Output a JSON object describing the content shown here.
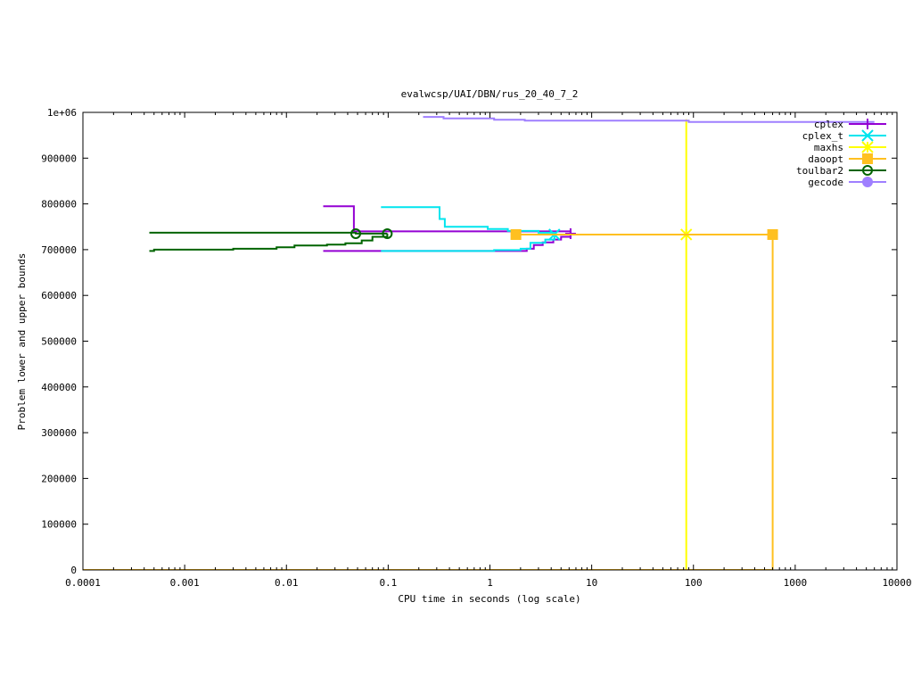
{
  "chart_data": {
    "type": "line",
    "title": "evalwcsp/UAI/DBN/rus_20_40_7_2",
    "xlabel": "CPU time in seconds (log scale)",
    "ylabel": "Problem lower and upper bounds",
    "x_scale": "log",
    "xlim": [
      0.0001,
      10000
    ],
    "ylim": [
      0,
      1000000
    ],
    "x_ticks": [
      {
        "value": 0.0001,
        "label": "0.0001"
      },
      {
        "value": 0.001,
        "label": "0.001"
      },
      {
        "value": 0.01,
        "label": "0.01"
      },
      {
        "value": 0.1,
        "label": "0.1"
      },
      {
        "value": 1,
        "label": "1"
      },
      {
        "value": 10,
        "label": "10"
      },
      {
        "value": 100,
        "label": "100"
      },
      {
        "value": 1000,
        "label": "1000"
      },
      {
        "value": 10000,
        "label": "10000"
      }
    ],
    "y_ticks": [
      {
        "value": 0,
        "label": "0"
      },
      {
        "value": 100000,
        "label": "100000"
      },
      {
        "value": 200000,
        "label": "200000"
      },
      {
        "value": 300000,
        "label": "300000"
      },
      {
        "value": 400000,
        "label": "400000"
      },
      {
        "value": 500000,
        "label": "500000"
      },
      {
        "value": 600000,
        "label": "600000"
      },
      {
        "value": 700000,
        "label": "700000"
      },
      {
        "value": 800000,
        "label": "800000"
      },
      {
        "value": 900000,
        "label": "900000"
      },
      {
        "value": 1000000,
        "label": "1e+06"
      }
    ],
    "grid": false,
    "legend_position": "top-right",
    "series": [
      {
        "name": "cplex",
        "color": "#9400d3",
        "marker": "plus",
        "paths": [
          [
            [
              0.023,
              795000
            ],
            [
              0.046,
              795000
            ],
            [
              0.046,
              740000
            ],
            [
              0.13,
              740000
            ],
            [
              2.5,
              740000
            ],
            [
              6.2,
              740000
            ],
            [
              6.2,
              728000
            ]
          ],
          [
            [
              0.023,
              697000
            ],
            [
              0.08,
              697000
            ],
            [
              1.2,
              697000
            ],
            [
              2.3,
              697000
            ],
            [
              2.3,
              702000
            ],
            [
              2.7,
              702000
            ],
            [
              2.7,
              710000
            ],
            [
              3.3,
              710000
            ],
            [
              3.3,
              716000
            ],
            [
              4.2,
              716000
            ],
            [
              4.2,
              722000
            ],
            [
              5.0,
              722000
            ],
            [
              5.0,
              728000
            ],
            [
              6.2,
              728000
            ]
          ]
        ],
        "markers": [
          [
            6.2,
            735000
          ]
        ]
      },
      {
        "name": "cplex_t",
        "color": "#00e5ee",
        "marker": "cross",
        "paths": [
          [
            [
              0.085,
              793000
            ],
            [
              0.32,
              793000
            ],
            [
              0.32,
              767000
            ],
            [
              0.36,
              767000
            ],
            [
              0.36,
              750000
            ],
            [
              0.95,
              750000
            ],
            [
              0.95,
              745000
            ],
            [
              1.5,
              745000
            ],
            [
              1.5,
              741000
            ],
            [
              3.0,
              741000
            ],
            [
              3.0,
              737000
            ],
            [
              4.3,
              737000
            ],
            [
              4.3,
              730000
            ]
          ],
          [
            [
              0.085,
              697000
            ],
            [
              1.1,
              697000
            ],
            [
              1.1,
              699000
            ],
            [
              2.0,
              699000
            ],
            [
              2.0,
              702000
            ],
            [
              2.5,
              702000
            ],
            [
              2.5,
              715000
            ],
            [
              3.5,
              715000
            ],
            [
              3.5,
              722000
            ],
            [
              4.3,
              722000
            ],
            [
              4.3,
              730000
            ]
          ]
        ],
        "markers": [
          [
            4.3,
            733000
          ]
        ]
      },
      {
        "name": "maxhs",
        "color": "#ffff00",
        "marker": "star",
        "paths": [
          [
            [
              85,
              985000
            ],
            [
              85,
              733000
            ],
            [
              85,
              0
            ]
          ],
          [
            [
              0.0001,
              0
            ],
            [
              85,
              0
            ]
          ]
        ],
        "markers": [
          [
            85,
            733000
          ]
        ]
      },
      {
        "name": "daoopt",
        "color": "#ffc020",
        "marker": "square",
        "paths": [
          [
            [
              1.8,
              733000
            ],
            [
              600,
              733000
            ],
            [
              600,
              0
            ]
          ],
          [
            [
              0.0001,
              0
            ],
            [
              600,
              0
            ]
          ]
        ],
        "markers": [
          [
            1.8,
            733000
          ],
          [
            600,
            733000
          ]
        ]
      },
      {
        "name": "toulbar2",
        "color": "#006400",
        "marker": "circle",
        "paths": [
          [
            [
              0.00045,
              737000
            ],
            [
              0.048,
              737000
            ],
            [
              0.048,
              735000
            ],
            [
              0.098,
              735000
            ]
          ],
          [
            [
              0.00045,
              697000
            ],
            [
              0.0005,
              697000
            ],
            [
              0.0005,
              700000
            ],
            [
              0.003,
              700000
            ],
            [
              0.003,
              702000
            ],
            [
              0.008,
              702000
            ],
            [
              0.008,
              705000
            ],
            [
              0.012,
              705000
            ],
            [
              0.012,
              709000
            ],
            [
              0.025,
              709000
            ],
            [
              0.025,
              711000
            ],
            [
              0.038,
              711000
            ],
            [
              0.038,
              714000
            ],
            [
              0.055,
              714000
            ],
            [
              0.055,
              720000
            ],
            [
              0.07,
              720000
            ],
            [
              0.07,
              728000
            ],
            [
              0.098,
              728000
            ],
            [
              0.098,
              735000
            ]
          ]
        ],
        "markers": [
          [
            0.048,
            735000
          ],
          [
            0.098,
            735000
          ]
        ]
      },
      {
        "name": "gecode",
        "color": "#9f7fff",
        "marker": "circle-filled",
        "paths": [
          [
            [
              0.22,
              990000
            ],
            [
              0.35,
              990000
            ],
            [
              0.35,
              987000
            ],
            [
              1.1,
              987000
            ],
            [
              1.1,
              984000
            ],
            [
              2.2,
              984000
            ],
            [
              2.2,
              982000
            ],
            [
              90,
              982000
            ],
            [
              90,
              979000
            ],
            [
              6000,
              979000
            ]
          ]
        ],
        "markers": []
      }
    ]
  }
}
